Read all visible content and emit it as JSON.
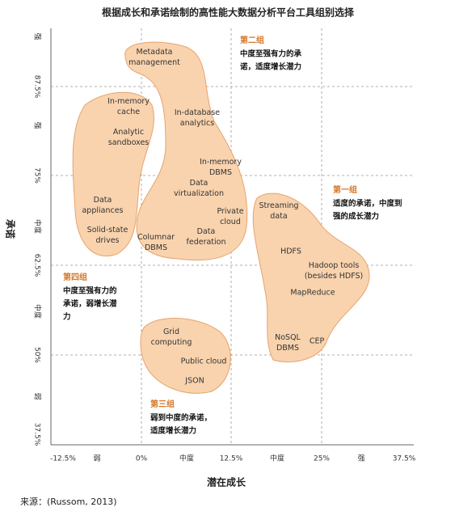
{
  "title": "根据成长和承诺绘制的高性能大数据分析平台工具组别选择",
  "y_axis": {
    "title": "承诺",
    "labels": [
      "强",
      "87.5%",
      "强",
      "75%",
      "中度",
      "62.5%",
      "中度",
      "50%",
      "弱",
      "37.5%"
    ]
  },
  "x_axis": {
    "title": "潜在成长",
    "labels": [
      "-12.5%",
      "弱",
      "0%",
      "中度",
      "12.5%",
      "中度",
      "25%",
      "强",
      "37.5%"
    ]
  },
  "groups": [
    {
      "name": "第二组",
      "description": [
        "中度至强有力的承",
        "诺，适度增长潜力"
      ]
    },
    {
      "name": "第一组",
      "description": [
        "适度的承诺，中度到",
        "强的成长潜力"
      ]
    },
    {
      "name": "第四组",
      "description": [
        "中度至强有力的",
        "承诺，弱增长潜",
        "力"
      ]
    },
    {
      "name": "第三组",
      "description": [
        "弱到中度的承诺，",
        "适度增长潜力"
      ]
    }
  ],
  "items": [
    {
      "label": [
        "Metadata",
        "management"
      ]
    },
    {
      "label": [
        "In-memory",
        "cache"
      ]
    },
    {
      "label": [
        "In-database",
        "analytics"
      ]
    },
    {
      "label": [
        "Analytic",
        "sandboxes"
      ]
    },
    {
      "label": [
        "In-memory",
        "DBMS"
      ]
    },
    {
      "label": [
        "Data",
        "virtualization"
      ]
    },
    {
      "label": [
        "Data",
        "appliances"
      ]
    },
    {
      "label": [
        "Private",
        "cloud"
      ]
    },
    {
      "label": [
        "Solid-state",
        "drives"
      ]
    },
    {
      "label": [
        "Columnar",
        "DBMS"
      ]
    },
    {
      "label": [
        "Data",
        "federation"
      ]
    },
    {
      "label": [
        "Streaming",
        "data"
      ]
    },
    {
      "label": [
        "HDFS"
      ]
    },
    {
      "label": [
        "Hadoop tools",
        "(besides HDFS)"
      ]
    },
    {
      "label": [
        "MapReduce"
      ]
    },
    {
      "label": [
        "NoSQL",
        "DBMS"
      ]
    },
    {
      "label": [
        "CEP"
      ]
    },
    {
      "label": [
        "Grid",
        "computing"
      ]
    },
    {
      "label": [
        "Public cloud"
      ]
    },
    {
      "label": [
        "JSON"
      ]
    }
  ],
  "source": "来源：(Russom, 2013)"
}
